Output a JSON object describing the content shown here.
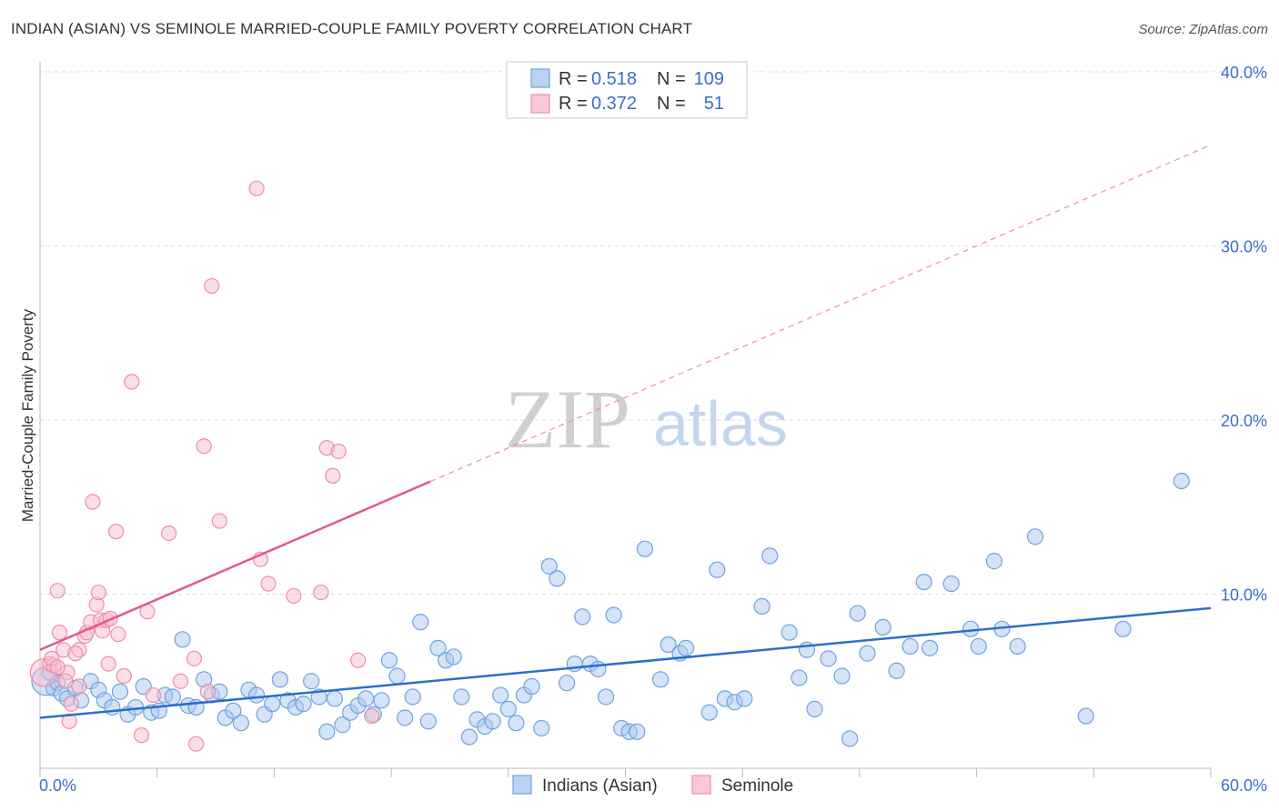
{
  "title": "INDIAN (ASIAN) VS SEMINOLE MARRIED-COUPLE FAMILY POVERTY CORRELATION CHART",
  "source": "Source: ZipAtlas.com",
  "watermark": {
    "zip": "ZIP",
    "atlas": "atlas"
  },
  "colors": {
    "blue": "#6fa3e0",
    "blue_fill": "#a9c8f0",
    "blue_line": "#2b6fcc",
    "pink": "#f08cab",
    "pink_fill": "#f7bfd0",
    "pink_line": "#e05a88",
    "axis_text": "#3a6fc4",
    "grid": "#dddddd"
  },
  "legend": {
    "rows": [
      {
        "r_label": "R =",
        "r_value": "0.518",
        "n_label": "N =",
        "n_value": "109"
      },
      {
        "r_label": "R =",
        "r_value": "0.372",
        "n_label": "N =",
        "n_value": "51"
      }
    ]
  },
  "chart_data": {
    "type": "scatter",
    "xlabel": "",
    "ylabel": "Married-Couple Family Poverty",
    "xlim": [
      0,
      60
    ],
    "ylim": [
      0,
      40
    ],
    "x_ticks": [
      {
        "v": 0,
        "label": "0.0%"
      },
      {
        "v": 60,
        "label": "60.0%"
      }
    ],
    "y_ticks": [
      {
        "v": 10,
        "label": "10.0%"
      },
      {
        "v": 20,
        "label": "20.0%"
      },
      {
        "v": 30,
        "label": "30.0%"
      },
      {
        "v": 40,
        "label": "40.0%"
      }
    ],
    "series": [
      {
        "name": "Indians (Asian)",
        "trend": {
          "x": [
            0,
            60
          ],
          "y": [
            2.9,
            9.2
          ],
          "solid_to": 60
        },
        "points": [
          [
            0.3,
            5.0
          ],
          [
            0.5,
            5.5
          ],
          [
            0.7,
            4.6
          ],
          [
            0.9,
            4.9
          ],
          [
            1.1,
            4.3
          ],
          [
            1.4,
            4.0
          ],
          [
            1.8,
            4.6
          ],
          [
            2.1,
            3.9
          ],
          [
            2.6,
            5.0
          ],
          [
            3.0,
            4.5
          ],
          [
            3.3,
            3.9
          ],
          [
            3.7,
            3.5
          ],
          [
            4.1,
            4.4
          ],
          [
            4.5,
            3.1
          ],
          [
            4.9,
            3.5
          ],
          [
            5.3,
            4.7
          ],
          [
            5.7,
            3.2
          ],
          [
            6.1,
            3.3
          ],
          [
            6.4,
            4.2
          ],
          [
            6.8,
            4.1
          ],
          [
            7.3,
            7.4
          ],
          [
            7.6,
            3.6
          ],
          [
            8.0,
            3.5
          ],
          [
            8.4,
            5.1
          ],
          [
            8.8,
            4.2
          ],
          [
            9.2,
            4.4
          ],
          [
            9.5,
            2.9
          ],
          [
            9.9,
            3.3
          ],
          [
            10.3,
            2.6
          ],
          [
            10.7,
            4.5
          ],
          [
            11.1,
            4.2
          ],
          [
            11.5,
            3.1
          ],
          [
            11.9,
            3.7
          ],
          [
            12.3,
            5.1
          ],
          [
            12.7,
            3.9
          ],
          [
            13.1,
            3.5
          ],
          [
            13.5,
            3.7
          ],
          [
            13.9,
            5.0
          ],
          [
            14.3,
            4.1
          ],
          [
            14.7,
            2.1
          ],
          [
            15.1,
            4.0
          ],
          [
            15.5,
            2.5
          ],
          [
            15.9,
            3.2
          ],
          [
            16.3,
            3.6
          ],
          [
            16.7,
            4.0
          ],
          [
            17.1,
            3.1
          ],
          [
            17.5,
            3.9
          ],
          [
            17.9,
            6.2
          ],
          [
            18.3,
            5.3
          ],
          [
            18.7,
            2.9
          ],
          [
            19.1,
            4.1
          ],
          [
            19.5,
            8.4
          ],
          [
            19.9,
            2.7
          ],
          [
            20.4,
            6.9
          ],
          [
            20.8,
            6.2
          ],
          [
            21.2,
            6.4
          ],
          [
            21.6,
            4.1
          ],
          [
            22.0,
            1.8
          ],
          [
            22.4,
            2.8
          ],
          [
            22.8,
            2.4
          ],
          [
            23.2,
            2.7
          ],
          [
            23.6,
            4.2
          ],
          [
            24.0,
            3.4
          ],
          [
            24.4,
            2.6
          ],
          [
            24.8,
            4.2
          ],
          [
            25.2,
            4.7
          ],
          [
            25.7,
            2.3
          ],
          [
            26.1,
            11.6
          ],
          [
            26.5,
            10.9
          ],
          [
            27.0,
            4.9
          ],
          [
            27.4,
            6.0
          ],
          [
            27.8,
            8.7
          ],
          [
            28.2,
            6.0
          ],
          [
            28.6,
            5.7
          ],
          [
            29.0,
            4.1
          ],
          [
            29.4,
            8.8
          ],
          [
            29.8,
            2.3
          ],
          [
            30.2,
            2.1
          ],
          [
            30.6,
            2.1
          ],
          [
            31.0,
            12.6
          ],
          [
            31.8,
            5.1
          ],
          [
            32.2,
            7.1
          ],
          [
            32.8,
            6.6
          ],
          [
            33.1,
            6.9
          ],
          [
            34.3,
            3.2
          ],
          [
            34.7,
            11.4
          ],
          [
            35.1,
            4.0
          ],
          [
            35.6,
            3.8
          ],
          [
            36.1,
            4.0
          ],
          [
            37.0,
            9.3
          ],
          [
            37.4,
            12.2
          ],
          [
            38.4,
            7.8
          ],
          [
            38.9,
            5.2
          ],
          [
            39.3,
            6.8
          ],
          [
            39.7,
            3.4
          ],
          [
            40.4,
            6.3
          ],
          [
            41.1,
            5.3
          ],
          [
            41.5,
            1.7
          ],
          [
            41.9,
            8.9
          ],
          [
            42.4,
            6.6
          ],
          [
            43.2,
            8.1
          ],
          [
            43.9,
            5.6
          ],
          [
            44.6,
            7.0
          ],
          [
            45.3,
            10.7
          ],
          [
            45.6,
            6.9
          ],
          [
            46.7,
            10.6
          ],
          [
            47.7,
            8.0
          ],
          [
            48.1,
            7.0
          ],
          [
            48.9,
            11.9
          ],
          [
            49.3,
            8.0
          ],
          [
            50.1,
            7.0
          ],
          [
            51.0,
            13.3
          ],
          [
            53.6,
            3.0
          ],
          [
            55.5,
            8.0
          ],
          [
            58.5,
            16.5
          ]
        ]
      },
      {
        "name": "Seminole",
        "trend": {
          "x": [
            0,
            60
          ],
          "y": [
            6.8,
            35.8
          ],
          "solid_to": 20
        },
        "points": [
          [
            0.2,
            5.5
          ],
          [
            0.5,
            6.0
          ],
          [
            0.7,
            5.9
          ],
          [
            0.9,
            10.2
          ],
          [
            1.0,
            7.8
          ],
          [
            1.2,
            6.8
          ],
          [
            1.4,
            5.5
          ],
          [
            1.5,
            2.7
          ],
          [
            1.6,
            3.7
          ],
          [
            2.0,
            4.7
          ],
          [
            2.0,
            6.8
          ],
          [
            2.3,
            7.6
          ],
          [
            2.4,
            7.8
          ],
          [
            2.6,
            8.4
          ],
          [
            2.7,
            15.3
          ],
          [
            2.9,
            9.4
          ],
          [
            3.0,
            10.1
          ],
          [
            3.1,
            8.5
          ],
          [
            3.2,
            7.9
          ],
          [
            3.4,
            8.5
          ],
          [
            3.6,
            8.6
          ],
          [
            3.9,
            13.6
          ],
          [
            4.0,
            7.7
          ],
          [
            4.3,
            5.3
          ],
          [
            5.2,
            1.9
          ],
          [
            5.5,
            9.0
          ],
          [
            5.8,
            4.2
          ],
          [
            6.6,
            13.5
          ],
          [
            7.2,
            5.0
          ],
          [
            7.9,
            6.3
          ],
          [
            8.0,
            1.4
          ],
          [
            8.4,
            18.5
          ],
          [
            8.6,
            4.4
          ],
          [
            8.8,
            27.7
          ],
          [
            9.2,
            14.2
          ],
          [
            11.1,
            33.3
          ],
          [
            11.3,
            12.0
          ],
          [
            11.7,
            10.6
          ],
          [
            13.0,
            9.9
          ],
          [
            14.4,
            10.1
          ],
          [
            14.7,
            18.4
          ],
          [
            15.0,
            16.8
          ],
          [
            15.3,
            18.2
          ],
          [
            16.3,
            6.2
          ],
          [
            17.0,
            3.0
          ],
          [
            4.7,
            22.2
          ],
          [
            0.6,
            6.3
          ],
          [
            1.8,
            6.6
          ],
          [
            3.5,
            6.0
          ],
          [
            1.3,
            5.0
          ],
          [
            0.9,
            5.8
          ]
        ]
      }
    ]
  },
  "bottom_legend": [
    "Indians (Asian)",
    "Seminole"
  ]
}
